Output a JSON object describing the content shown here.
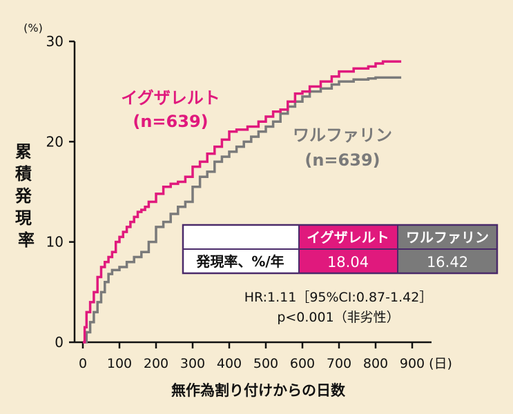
{
  "chart_data": {
    "type": "line",
    "title": "",
    "xlabel": "無作為割り付けからの日数",
    "ylabel": "累積発現率",
    "y_unit": "(%)",
    "x_unit": "(日)",
    "xlim": [
      0,
      900
    ],
    "ylim": [
      0,
      30
    ],
    "x_ticks": [
      0,
      100,
      200,
      300,
      400,
      500,
      600,
      700,
      800,
      900
    ],
    "y_ticks": [
      0,
      10,
      20,
      30
    ],
    "series": [
      {
        "name": "イグザレルト",
        "n_label": "(n=639)",
        "color": "#e0197d",
        "x": [
          0,
          5,
          10,
          20,
          30,
          40,
          50,
          60,
          70,
          80,
          90,
          100,
          110,
          120,
          130,
          140,
          150,
          160,
          170,
          180,
          200,
          220,
          240,
          260,
          280,
          300,
          320,
          340,
          360,
          380,
          400,
          420,
          450,
          480,
          500,
          520,
          540,
          560,
          580,
          600,
          620,
          650,
          680,
          700,
          740,
          780,
          800,
          820,
          870
        ],
        "values": [
          0,
          1.5,
          3.0,
          4.0,
          5.0,
          6.5,
          7.5,
          8.0,
          8.5,
          9.0,
          10.0,
          10.5,
          11.0,
          11.5,
          12.0,
          12.5,
          13.0,
          13.2,
          13.5,
          14.0,
          14.8,
          15.5,
          15.8,
          16.0,
          16.5,
          17.5,
          18.0,
          18.8,
          19.5,
          20.2,
          21.0,
          21.2,
          21.5,
          22.0,
          22.5,
          23.0,
          23.2,
          24.0,
          24.8,
          25.0,
          25.5,
          26.0,
          26.5,
          27.0,
          27.3,
          27.5,
          27.8,
          28.0,
          28.0
        ]
      },
      {
        "name": "ワルファリン",
        "n_label": "(n=639)",
        "color": "#7a7a7a",
        "x": [
          0,
          10,
          20,
          30,
          40,
          50,
          60,
          70,
          80,
          100,
          120,
          140,
          160,
          180,
          200,
          220,
          240,
          260,
          280,
          300,
          320,
          340,
          360,
          380,
          400,
          420,
          440,
          460,
          480,
          500,
          520,
          540,
          560,
          580,
          600,
          620,
          650,
          680,
          700,
          740,
          780,
          800,
          870
        ],
        "values": [
          0,
          1.0,
          2.0,
          3.0,
          4.0,
          5.0,
          6.0,
          6.8,
          7.2,
          7.5,
          8.0,
          8.5,
          9.0,
          10.0,
          11.5,
          12.0,
          12.8,
          13.5,
          14.0,
          15.5,
          16.5,
          17.0,
          18.0,
          18.5,
          19.0,
          19.5,
          20.0,
          20.5,
          21.0,
          21.5,
          22.0,
          22.8,
          23.5,
          24.0,
          24.5,
          25.0,
          25.3,
          25.7,
          26.0,
          26.2,
          26.3,
          26.4,
          26.4
        ]
      }
    ],
    "table": {
      "row_label": "発現率、%/年",
      "columns": [
        "イグザレルト",
        "ワルファリン"
      ],
      "values": [
        "18.04",
        "16.42"
      ]
    },
    "annotations": {
      "hr": "HR:1.11［95%CI:0.87-1.42］",
      "p": "p<0.001（非劣性）"
    }
  }
}
